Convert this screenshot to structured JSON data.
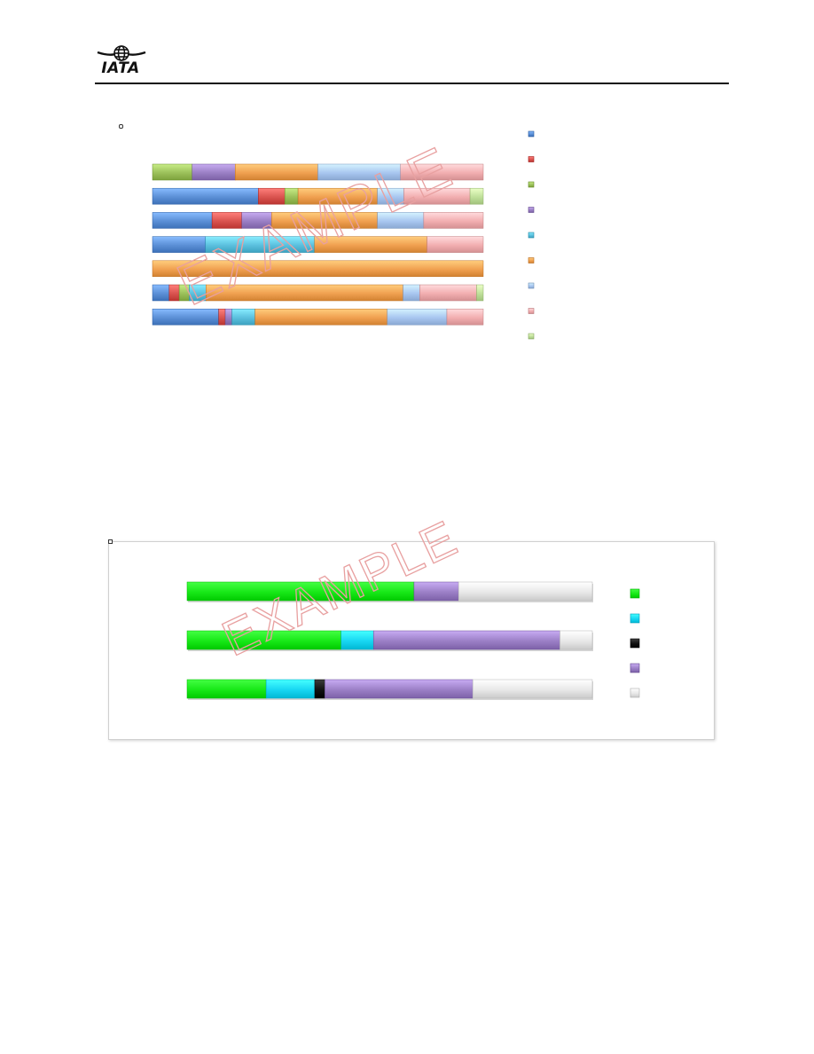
{
  "header": {
    "logo_text": "IATA"
  },
  "watermark": {
    "text": "EXAMPLE",
    "color": "#e8a0a0"
  },
  "chart_data": [
    {
      "type": "bar",
      "stacked": true,
      "orientation": "horizontal",
      "normalized_percent": true,
      "rows": 7,
      "series": [
        {
          "color": "#5b8fd6",
          "values": [
            0,
            32,
            18,
            16,
            0,
            5,
            20
          ]
        },
        {
          "color": "#d9534f",
          "values": [
            0,
            8,
            9,
            0,
            0,
            3,
            2
          ]
        },
        {
          "color": "#9bc05a",
          "values": [
            12,
            4,
            0,
            0,
            0,
            3,
            0
          ]
        },
        {
          "color": "#9a7fc4",
          "values": [
            13,
            0,
            9,
            0,
            0,
            0,
            2
          ]
        },
        {
          "color": "#5bc0de",
          "values": [
            0,
            0,
            0,
            33,
            0,
            5,
            7
          ]
        },
        {
          "color": "#f0a050",
          "values": [
            25,
            24,
            32,
            34,
            100,
            59,
            40
          ]
        },
        {
          "color": "#a8c6f0",
          "values": [
            25,
            8,
            14,
            0,
            0,
            5,
            18
          ]
        },
        {
          "color": "#f2aeb0",
          "values": [
            25,
            20,
            18,
            17,
            0,
            17,
            11
          ]
        },
        {
          "color": "#bfe09a",
          "values": [
            0,
            4,
            0,
            0,
            0,
            2,
            0
          ]
        }
      ],
      "legend_position": "right"
    },
    {
      "type": "bar",
      "stacked": true,
      "orientation": "horizontal",
      "normalized_percent": true,
      "rows": 3,
      "series": [
        {
          "color": "#17e817",
          "values": [
            56,
            38,
            19.5
          ]
        },
        {
          "color": "#18d6f2",
          "values": [
            0,
            8,
            12
          ]
        },
        {
          "color": "#111111",
          "values": [
            0,
            0,
            2.5
          ]
        },
        {
          "color": "#9b7fc6",
          "values": [
            11,
            46,
            36.5
          ]
        },
        {
          "color": "#e8e8e8",
          "values": [
            33,
            8,
            29.5
          ]
        }
      ],
      "legend_position": "right"
    }
  ]
}
